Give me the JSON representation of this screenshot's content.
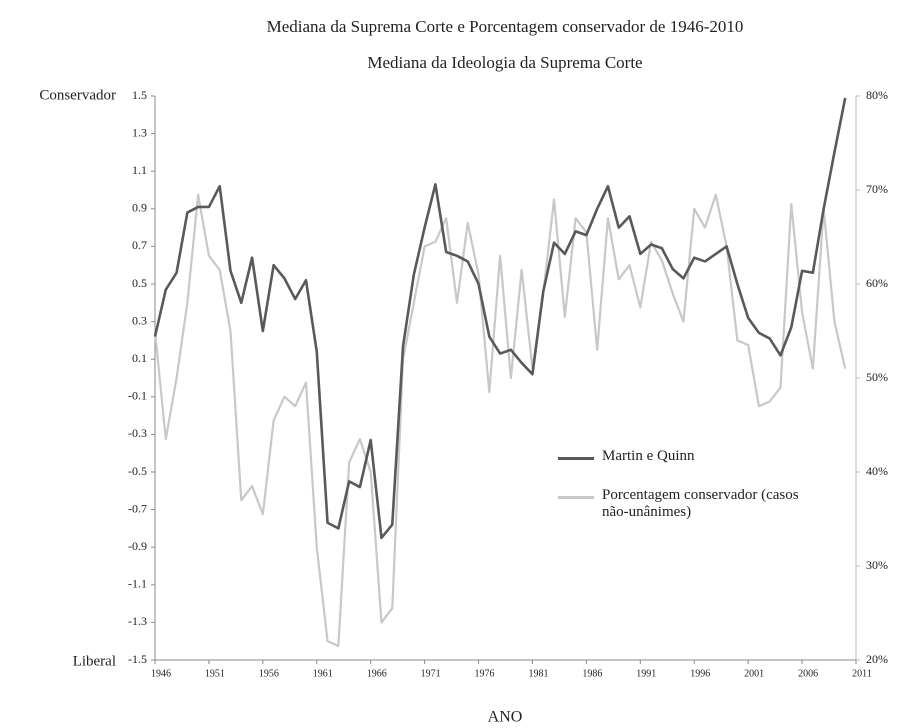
{
  "chart_data": {
    "type": "line",
    "title": "Mediana da Suprema Corte e Porcentagem conservador de 1946-2010",
    "subtitle": "Mediana da Ideologia da Suprema Corte",
    "xlabel": "ANO",
    "annotations": [
      "Conservador",
      "Liberal"
    ],
    "x": [
      1946,
      1947,
      1948,
      1949,
      1950,
      1951,
      1952,
      1953,
      1954,
      1955,
      1956,
      1957,
      1958,
      1959,
      1960,
      1961,
      1962,
      1963,
      1964,
      1965,
      1966,
      1967,
      1968,
      1969,
      1970,
      1971,
      1972,
      1973,
      1974,
      1975,
      1976,
      1977,
      1978,
      1979,
      1980,
      1981,
      1982,
      1983,
      1984,
      1985,
      1986,
      1987,
      1988,
      1989,
      1990,
      1991,
      1992,
      1993,
      1994,
      1995,
      1996,
      1997,
      1998,
      1999,
      2000,
      2001,
      2002,
      2003,
      2004,
      2005,
      2006,
      2007,
      2008,
      2009,
      2010
    ],
    "series": [
      {
        "name": "Martin e Quinn",
        "color": "#595959",
        "values": [
          0.22,
          0.47,
          0.56,
          0.88,
          0.91,
          0.91,
          1.02,
          0.57,
          0.4,
          0.64,
          0.25,
          0.6,
          0.53,
          0.42,
          0.52,
          0.14,
          -0.77,
          -0.8,
          -0.55,
          -0.58,
          -0.33,
          -0.85,
          -0.78,
          0.17,
          0.55,
          0.8,
          1.03,
          0.67,
          0.65,
          0.62,
          0.5,
          0.22,
          0.13,
          0.15,
          0.08,
          0.02,
          0.46,
          0.72,
          0.66,
          0.78,
          0.76,
          0.9,
          1.02,
          0.8,
          0.86,
          0.66,
          0.71,
          0.69,
          0.58,
          0.53,
          0.64,
          0.62,
          0.66,
          0.7,
          0.5,
          0.32,
          0.24,
          0.21,
          0.12,
          0.27,
          0.57,
          0.56,
          0.9,
          1.2,
          1.49
        ]
      },
      {
        "name": "Porcentagem conservador (casos não-unânimes)",
        "color": "#c8c8c8",
        "axis": "y2",
        "values": [
          55,
          43.5,
          50,
          58,
          69.5,
          63,
          61.5,
          55,
          37,
          38.5,
          35.5,
          45.5,
          48,
          47,
          49.5,
          32,
          22,
          21.5,
          41,
          43.5,
          40,
          24,
          25.5,
          52,
          58,
          64,
          64.5,
          67,
          58,
          66.5,
          61,
          48.5,
          63,
          50,
          61.5,
          51,
          59,
          69,
          56.5,
          67,
          65.5,
          53,
          67,
          60.5,
          62,
          57.5,
          64.5,
          62.5,
          59,
          56,
          68,
          66,
          69.5,
          64,
          54,
          53.5,
          47,
          47.5,
          49,
          68.5,
          57,
          51,
          68,
          56,
          51
        ]
      }
    ],
    "xlim": [
      1946,
      2011
    ],
    "xticks": [
      1946,
      1951,
      1956,
      1961,
      1966,
      1971,
      1976,
      1981,
      1986,
      1991,
      1996,
      2001,
      2006,
      2011
    ],
    "ylim": [
      -1.5,
      1.5
    ],
    "yticks": [
      1.5,
      1.3,
      1.1,
      0.9,
      0.7,
      0.5,
      0.3,
      0.1,
      -0.1,
      -0.3,
      -0.5,
      -0.7,
      -0.9,
      -1.1,
      -1.3,
      -1.5
    ],
    "y2lim": [
      20,
      80
    ],
    "y2ticks": [
      {
        "value": 80,
        "label": "80%"
      },
      {
        "value": 70,
        "label": "70%"
      },
      {
        "value": 60,
        "label": "60%"
      },
      {
        "value": 50,
        "label": "50%"
      },
      {
        "value": 40,
        "label": "40%"
      },
      {
        "value": 30,
        "label": "30%"
      },
      {
        "value": 20,
        "label": "20%"
      }
    ],
    "grid": false,
    "legend": "center-right"
  }
}
